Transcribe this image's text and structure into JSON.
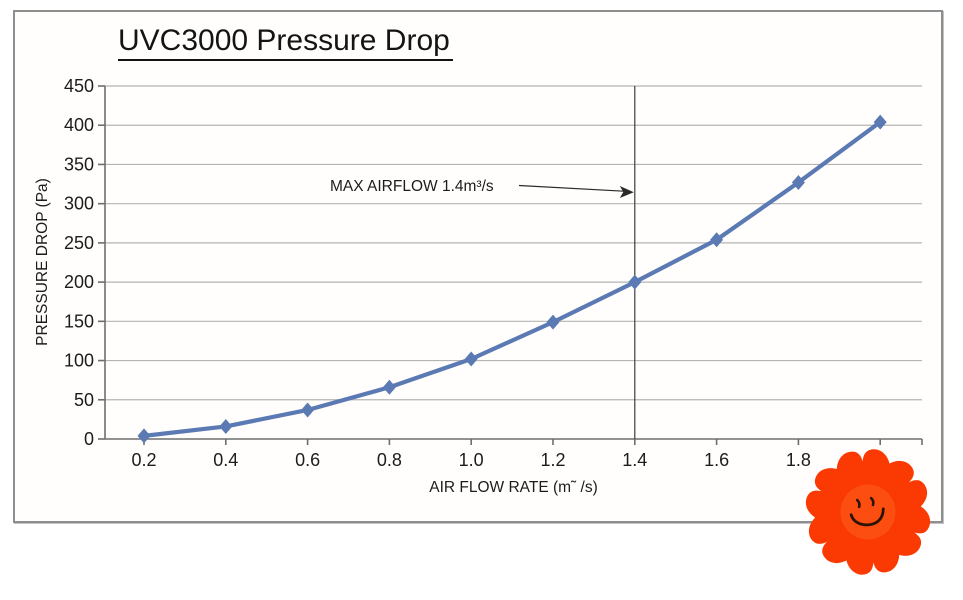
{
  "chart_data": {
    "type": "line",
    "title": "UVC3000 Pressure Drop",
    "xlabel": "AIR FLOW RATE (m˜ /s)",
    "ylabel": "PRESSURE DROP (Pa)",
    "x": [
      0.2,
      0.4,
      0.6,
      0.8,
      1.0,
      1.2,
      1.4,
      1.6,
      1.8,
      2.0
    ],
    "values": [
      4,
      16,
      37,
      66,
      102,
      149,
      200,
      254,
      327,
      404
    ],
    "x_tick_labels": [
      "0.2",
      "0.4",
      "0.6",
      "0.8",
      "1.0",
      "1.2",
      "1.4",
      "1.6",
      "1.8"
    ],
    "y_ticks": [
      0,
      50,
      100,
      150,
      200,
      250,
      300,
      350,
      400,
      450
    ],
    "ylim": [
      0,
      450
    ],
    "grid": "horizontal",
    "legend": "none",
    "series_color": "#5b7ab3",
    "marker": "diamond",
    "annotation": {
      "text": "MAX AIRFLOW 1.4m³/s",
      "line_x": 1.4
    }
  },
  "colors": {
    "gridline": "#b4b4b4",
    "axis": "#6e6e6e",
    "text": "#1c1c1c",
    "max_line": "#3c3c3c",
    "frame_border": "#8e8e8e"
  },
  "flower": {
    "petal_color": "#fa3a02",
    "center_color": "#fd4e12",
    "face_color": "#2a1403"
  }
}
